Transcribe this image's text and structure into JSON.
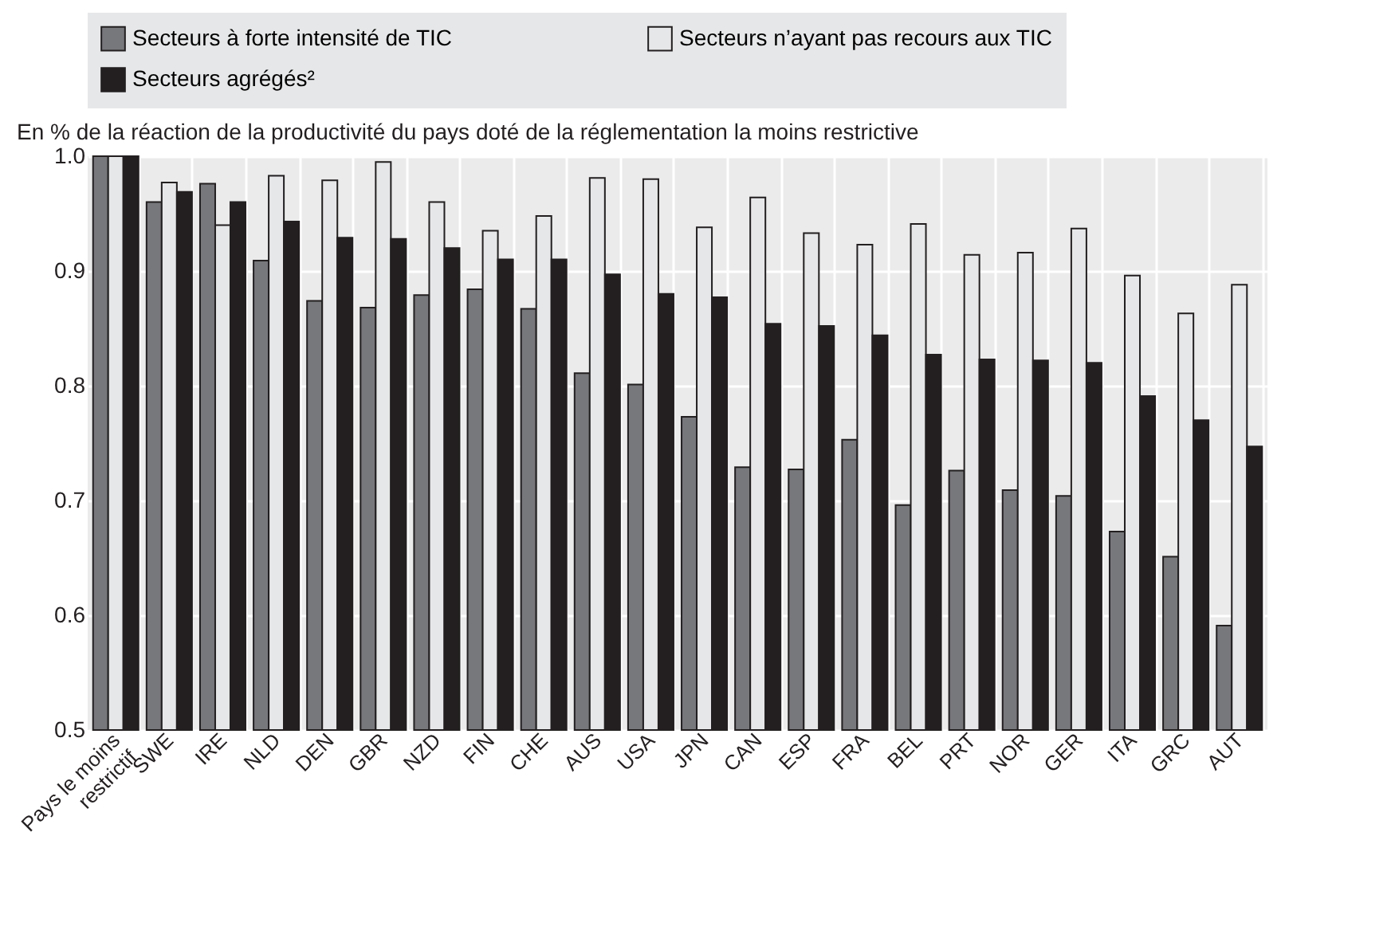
{
  "chart_data": {
    "type": "bar",
    "ylabel": "En % de la réaction de la productivité du pays doté de la réglementation la moins restrictive",
    "categories": [
      "Pays le moins restrictif",
      "SWE",
      "IRE",
      "NLD",
      "DEN",
      "GBR",
      "NZD",
      "FIN",
      "CHE",
      "AUS",
      "USA",
      "JPN",
      "CAN",
      "ESP",
      "FRA",
      "BEL",
      "PRT",
      "NOR",
      "GER",
      "ITA",
      "GRC",
      "AUT"
    ],
    "series": [
      {
        "name": "Secteurs à forte intensité de TIC",
        "color": "#77787b",
        "values": [
          1.0,
          0.96,
          0.976,
          0.909,
          0.874,
          0.868,
          0.879,
          0.884,
          0.867,
          0.811,
          0.801,
          0.773,
          0.729,
          0.727,
          0.753,
          0.696,
          0.726,
          0.709,
          0.704,
          0.673,
          0.651,
          0.591
        ]
      },
      {
        "name": "Secteurs n’ayant pas recours aux TIC",
        "color": "#e6e7e8",
        "values": [
          1.0,
          0.977,
          0.94,
          0.983,
          0.979,
          0.995,
          0.96,
          0.935,
          0.948,
          0.981,
          0.98,
          0.938,
          0.964,
          0.933,
          0.923,
          0.941,
          0.914,
          0.916,
          0.937,
          0.896,
          0.863,
          0.888
        ]
      },
      {
        "name": "Secteurs agrégés²",
        "color": "#231f20",
        "values": [
          1.0,
          0.969,
          0.96,
          0.943,
          0.929,
          0.928,
          0.92,
          0.91,
          0.91,
          0.897,
          0.88,
          0.877,
          0.854,
          0.852,
          0.844,
          0.827,
          0.823,
          0.822,
          0.82,
          0.791,
          0.77,
          0.747
        ]
      }
    ],
    "ylim": [
      0.5,
      1.0
    ],
    "yticks": [
      0.5,
      0.6,
      0.7,
      0.8,
      0.9,
      {
        "value": 1,
        "label": "1.0"
      }
    ],
    "grid": true,
    "legend": "top"
  }
}
